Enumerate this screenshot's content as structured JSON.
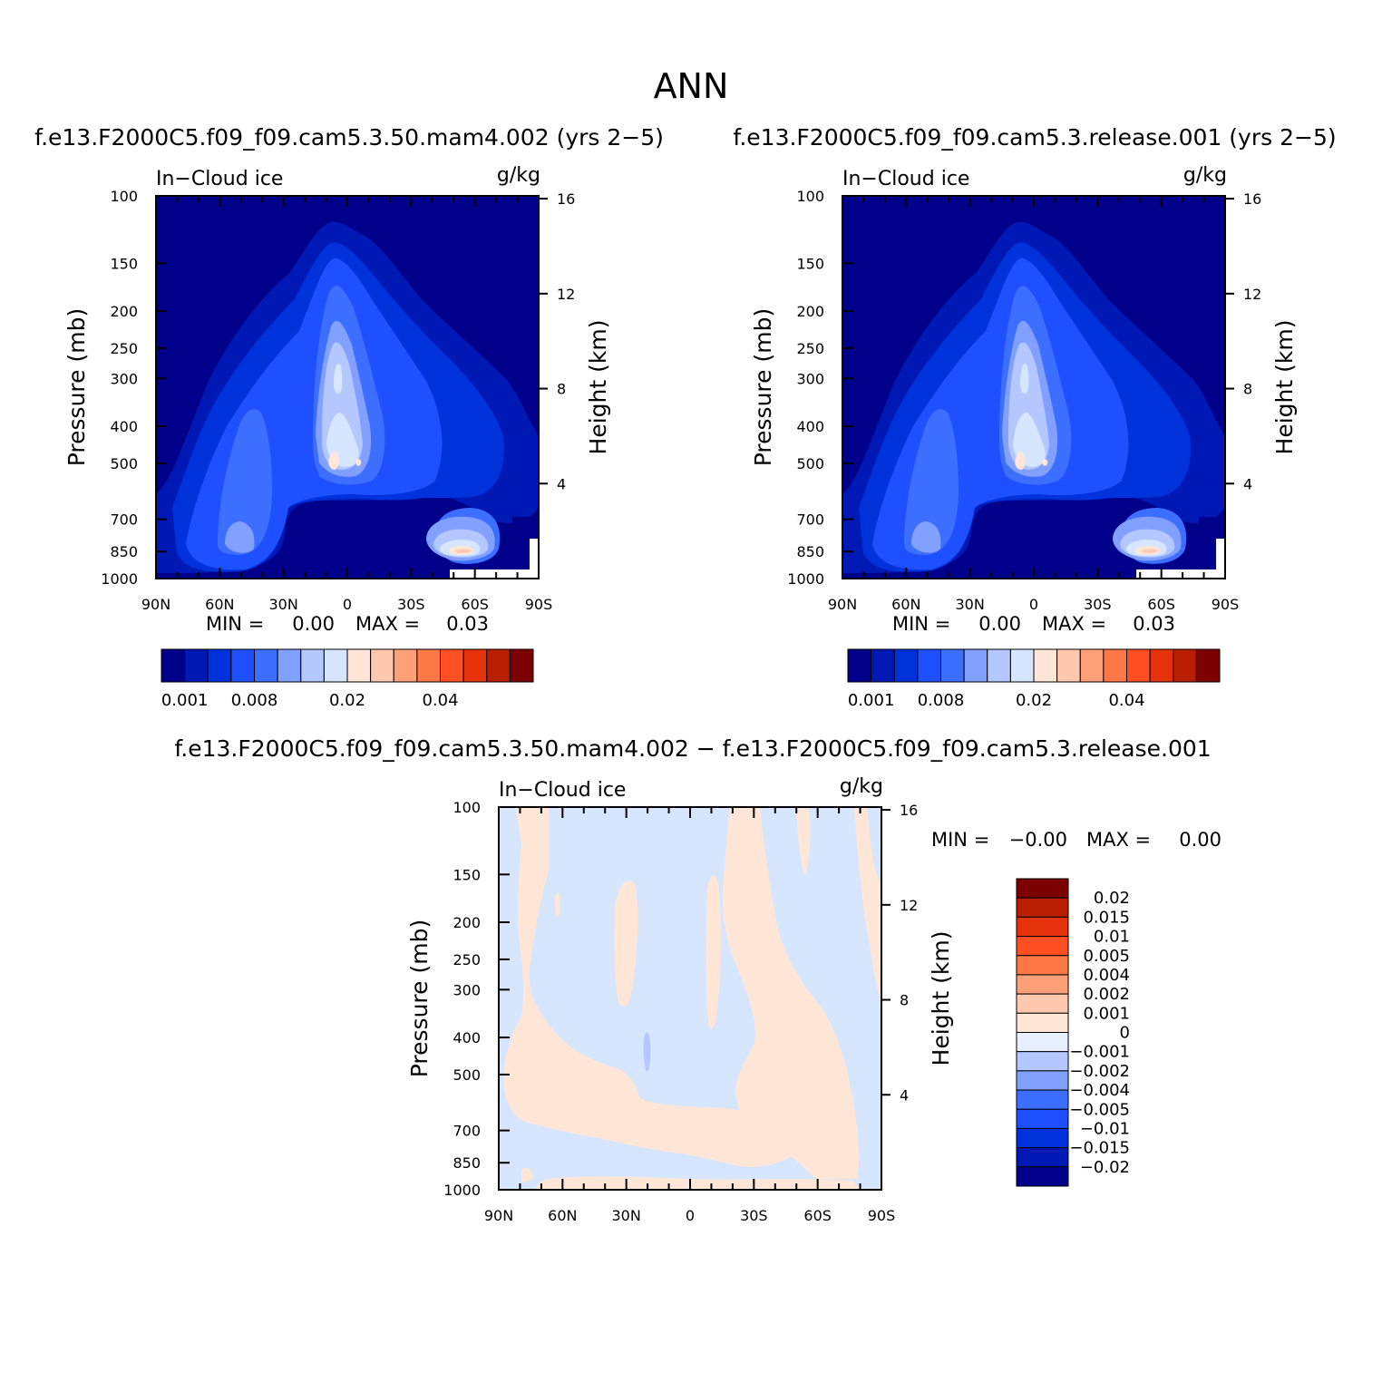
{
  "figure": {
    "title": "ANN",
    "panels": [
      {
        "id": "p1",
        "subtitle": "f.e13.F2000C5.f09_f09.cam5.3.50.mam4.002 (yrs 2−5)",
        "left_label": "In−Cloud ice",
        "right_label": "g/kg",
        "ylabel": "Pressure (mb)",
        "ylabel_right": "Height (km)",
        "stats": {
          "min_label": "MIN =",
          "min_value": "0.00",
          "max_label": "MAX =",
          "max_value": "0.03"
        }
      },
      {
        "id": "p2",
        "subtitle": "f.e13.F2000C5.f09_f09.cam5.3.release.001 (yrs 2−5)",
        "left_label": "In−Cloud ice",
        "right_label": "g/kg",
        "ylabel": "Pressure (mb)",
        "ylabel_right": "Height (km)",
        "stats": {
          "min_label": "MIN =",
          "min_value": "0.00",
          "max_label": "MAX =",
          "max_value": "0.03"
        }
      },
      {
        "id": "p3",
        "subtitle": "f.e13.F2000C5.f09_f09.cam5.3.50.mam4.002 − f.e13.F2000C5.f09_f09.cam5.3.release.001",
        "left_label": "In−Cloud ice",
        "right_label": "g/kg",
        "ylabel": "Pressure (mb)",
        "ylabel_right": "Height (km)",
        "stats": {
          "min_label": "MIN =",
          "min_value": "−0.00",
          "max_label": "MAX =",
          "max_value": "0.00"
        }
      }
    ]
  },
  "chart_data": [
    {
      "type": "heatmap",
      "title": "f.e13.F2000C5.f09_f09.cam5.3.50.mam4.002 (yrs 2−5)",
      "variable": "In−Cloud ice",
      "units": "g/kg",
      "ylabel": "Pressure (mb)",
      "ylabel_right": "Height (km)",
      "x_ticks": [
        "90N",
        "60N",
        "30N",
        "0",
        "30S",
        "60S",
        "90S"
      ],
      "y_ticks": [
        100,
        150,
        200,
        250,
        300,
        400,
        500,
        700,
        850,
        1000
      ],
      "y_ticks_right": [
        4,
        8,
        12,
        16
      ],
      "ylim": [
        1000,
        100
      ],
      "colorbar": {
        "orientation": "horizontal",
        "labels": [
          "0.001",
          "0.008",
          "0.02",
          "0.04"
        ],
        "colors": [
          "#00008b",
          "#0019b4",
          "#0032dc",
          "#1e50ff",
          "#3c6eff",
          "#82a0ff",
          "#b4c8ff",
          "#d7e6ff",
          "#ffe6d7",
          "#ffc8af",
          "#ffa078",
          "#ff7846",
          "#ff4f23",
          "#e6320a",
          "#b91e00",
          "#7d0000"
        ]
      },
      "min": 0.0,
      "max": 0.03
    },
    {
      "type": "heatmap",
      "title": "f.e13.F2000C5.f09_f09.cam5.3.release.001 (yrs 2−5)",
      "variable": "In−Cloud ice",
      "units": "g/kg",
      "ylabel": "Pressure (mb)",
      "ylabel_right": "Height (km)",
      "x_ticks": [
        "90N",
        "60N",
        "30N",
        "0",
        "30S",
        "60S",
        "90S"
      ],
      "y_ticks": [
        100,
        150,
        200,
        250,
        300,
        400,
        500,
        700,
        850,
        1000
      ],
      "y_ticks_right": [
        4,
        8,
        12,
        16
      ],
      "ylim": [
        1000,
        100
      ],
      "colorbar": {
        "orientation": "horizontal",
        "labels": [
          "0.001",
          "0.008",
          "0.02",
          "0.04"
        ],
        "colors": [
          "#00008b",
          "#0019b4",
          "#0032dc",
          "#1e50ff",
          "#3c6eff",
          "#82a0ff",
          "#b4c8ff",
          "#d7e6ff",
          "#ffe6d7",
          "#ffc8af",
          "#ffa078",
          "#ff7846",
          "#ff4f23",
          "#e6320a",
          "#b91e00",
          "#7d0000"
        ]
      },
      "min": 0.0,
      "max": 0.03
    },
    {
      "type": "heatmap",
      "title": "f.e13.F2000C5.f09_f09.cam5.3.50.mam4.002 − f.e13.F2000C5.f09_f09.cam5.3.release.001",
      "variable": "In−Cloud ice",
      "units": "g/kg",
      "ylabel": "Pressure (mb)",
      "ylabel_right": "Height (km)",
      "x_ticks": [
        "90N",
        "60N",
        "30N",
        "0",
        "30S",
        "60S",
        "90S"
      ],
      "y_ticks": [
        100,
        150,
        200,
        250,
        300,
        400,
        500,
        700,
        850,
        1000
      ],
      "y_ticks_right": [
        4,
        8,
        12,
        16
      ],
      "ylim": [
        1000,
        100
      ],
      "colorbar": {
        "orientation": "vertical",
        "labels": [
          "0.02",
          "0.015",
          "0.01",
          "0.005",
          "0.004",
          "0.002",
          "0.001",
          "0",
          "−0.001",
          "−0.002",
          "−0.004",
          "−0.005",
          "−0.01",
          "−0.015",
          "−0.02"
        ],
        "colors": [
          "#7d0000",
          "#b91e00",
          "#e6320a",
          "#ff4f23",
          "#ff7846",
          "#ffa078",
          "#ffc8af",
          "#ffe6d7",
          "#e6f0ff",
          "#b4c8ff",
          "#82a0ff",
          "#3c6eff",
          "#1e50ff",
          "#0032dc",
          "#0019b4",
          "#00008b"
        ]
      },
      "min": -0.0,
      "max": 0.0
    }
  ]
}
